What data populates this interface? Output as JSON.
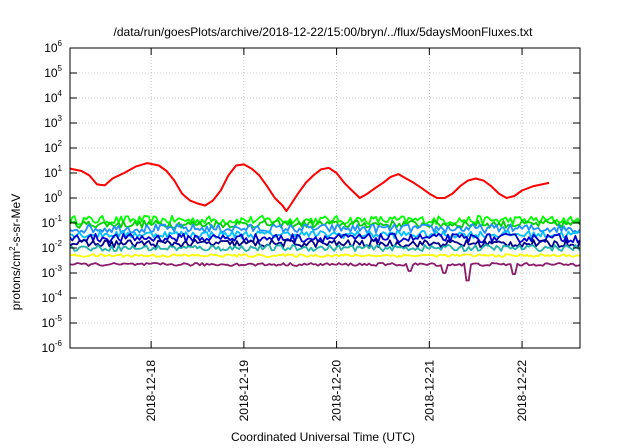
{
  "chart_data": {
    "type": "line",
    "title": "/data/run/goesPlots/archive/2018-12-22/15:00/bryn/../flux/5daysMoonFluxes.txt",
    "xlabel": "Coordinated Universal Time (UTC)",
    "ylabel": "protons/cm2-s-sr-MeV",
    "ylabel_parts": {
      "pre": "protons/cm",
      "sup": "2",
      "post": "-s-sr-MeV"
    },
    "y_scale": "log",
    "ylim_exp": [
      -6,
      6
    ],
    "y_tick_exponents": [
      -6,
      -5,
      -4,
      -3,
      -2,
      -1,
      0,
      1,
      2,
      3,
      4,
      5,
      6
    ],
    "xlim": [
      "2018-12-17T03:00",
      "2018-12-22T15:00"
    ],
    "x_ticks": [
      {
        "label": "2018-12-18",
        "t": "2018-12-18T00:00"
      },
      {
        "label": "2018-12-19",
        "t": "2018-12-19T00:00"
      },
      {
        "label": "2018-12-20",
        "t": "2018-12-20T00:00"
      },
      {
        "label": "2018-12-21",
        "t": "2018-12-21T00:00"
      },
      {
        "label": "2018-12-22",
        "t": "2018-12-22T00:00"
      }
    ],
    "grid": true,
    "legend": "none",
    "series": [
      {
        "color": "#ff0000",
        "x_unit": "hours from 2018-12-17T03:00",
        "points": [
          [
            0,
            15
          ],
          [
            3,
            12
          ],
          [
            5,
            8
          ],
          [
            7,
            3.5
          ],
          [
            9,
            3.2
          ],
          [
            11,
            6
          ],
          [
            14,
            10
          ],
          [
            17,
            18
          ],
          [
            20,
            25
          ],
          [
            23,
            20
          ],
          [
            25,
            12
          ],
          [
            27,
            5
          ],
          [
            29,
            1.5
          ],
          [
            31,
            0.8
          ],
          [
            33,
            0.6
          ],
          [
            35,
            0.5
          ],
          [
            37,
            0.8
          ],
          [
            39,
            2
          ],
          [
            41,
            8
          ],
          [
            43,
            20
          ],
          [
            45,
            22
          ],
          [
            47,
            15
          ],
          [
            49,
            8
          ],
          [
            51,
            3
          ],
          [
            53,
            1
          ],
          [
            55,
            0.5
          ],
          [
            56,
            0.3
          ],
          [
            57,
            0.5
          ],
          [
            59,
            1.5
          ],
          [
            61,
            4
          ],
          [
            63,
            8
          ],
          [
            65,
            14
          ],
          [
            67,
            16
          ],
          [
            69,
            10
          ],
          [
            71,
            4
          ],
          [
            73,
            2
          ],
          [
            75,
            1
          ],
          [
            77,
            1.5
          ],
          [
            79,
            2.5
          ],
          [
            81,
            4
          ],
          [
            83,
            7
          ],
          [
            85,
            9
          ],
          [
            87,
            6
          ],
          [
            89,
            4
          ],
          [
            91,
            2.5
          ],
          [
            93,
            1.5
          ],
          [
            95,
            1
          ],
          [
            97,
            1
          ],
          [
            99,
            1.5
          ],
          [
            101,
            3
          ],
          [
            103,
            5
          ],
          [
            105,
            6
          ],
          [
            107,
            5
          ],
          [
            109,
            3
          ],
          [
            111,
            1.5
          ],
          [
            113,
            1
          ],
          [
            115,
            1.2
          ],
          [
            117,
            2
          ],
          [
            120,
            3
          ],
          [
            124,
            4
          ]
        ]
      },
      {
        "color": "#00ff00",
        "level": 0.13,
        "jitter": 0.35
      },
      {
        "color": "#00d000",
        "level": 0.09,
        "jitter": 0.3
      },
      {
        "color": "#1e90ff",
        "level": 0.06,
        "jitter": 0.35
      },
      {
        "color": "#00bfff",
        "level": 0.035,
        "jitter": 0.3
      },
      {
        "color": "#0000cd",
        "level": 0.025,
        "jitter": 0.35
      },
      {
        "color": "#00008b",
        "level": 0.015,
        "jitter": 0.3
      },
      {
        "color": "#20b2aa",
        "level": 0.01,
        "jitter": 0.25
      },
      {
        "color": "#ffff00",
        "level": 0.005,
        "jitter": 0.12
      },
      {
        "color": "#8b1a6b",
        "level": 0.0022,
        "jitter": 0.12,
        "dips": [
          [
            88,
            0.0012
          ],
          [
            97,
            0.001
          ],
          [
            103,
            0.0005
          ],
          [
            115,
            0.0009
          ]
        ]
      }
    ]
  }
}
